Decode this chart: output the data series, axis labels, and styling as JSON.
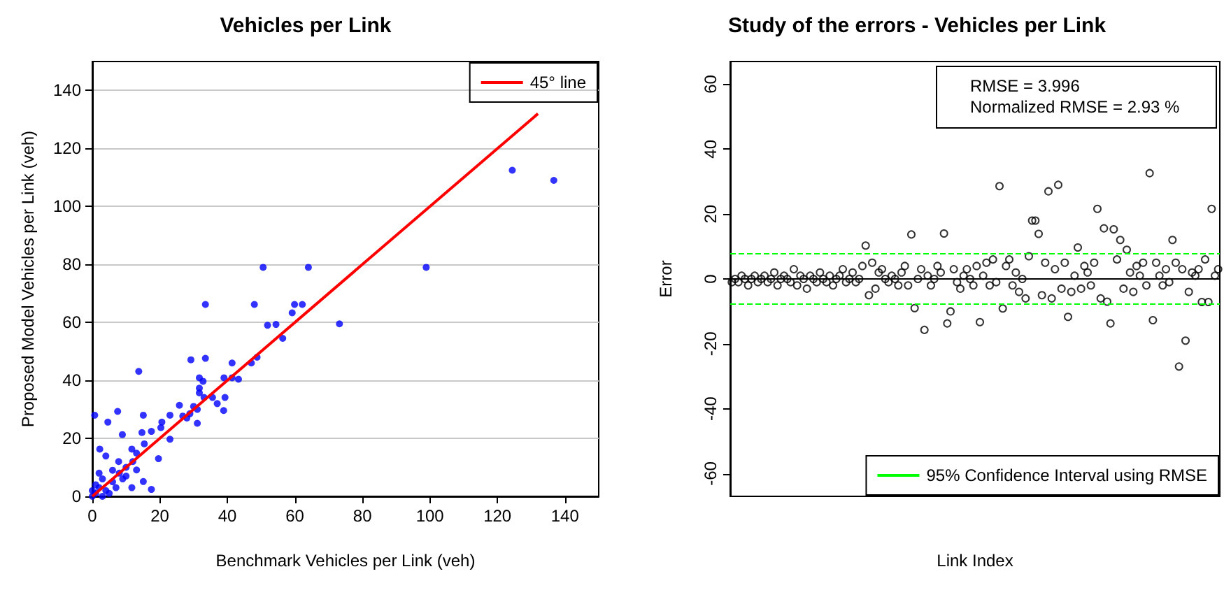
{
  "chart_data": [
    {
      "type": "scatter",
      "title": "Vehicles per Link",
      "xlabel": "Benchmark Vehicles per Link (veh)",
      "ylabel": "Proposed Model Vehicles per Link (veh)",
      "xlim": [
        0,
        150
      ],
      "xticks": [
        0,
        20,
        40,
        60,
        80,
        100,
        120,
        140
      ],
      "ylim": [
        0,
        150
      ],
      "yticks": [
        0,
        20,
        40,
        60,
        80,
        100,
        120,
        140
      ],
      "grid": "y",
      "legend": "top right",
      "series": [
        {
          "marker": "circle",
          "color": "#0000ff",
          "x": [
            124.4,
            136.7,
            98.9,
            50.6,
            64,
            33.5,
            48,
            59.9,
            62.2,
            59.2,
            51.9,
            54.4,
            56.4,
            73.2,
            29.2,
            33.5,
            41.4,
            47.1,
            48.8,
            13.75,
            31.7,
            32.8,
            39,
            41.4,
            43.3,
            31.7,
            31.7,
            33.1,
            35.6,
            37,
            39.3,
            38.9,
            31.1,
            31.1,
            25.8,
            28.9,
            26.8,
            23,
            20.6,
            20.3,
            23,
            19.6,
            17.5,
            14.7,
            15.1,
            7.5,
            0.7,
            4.6,
            8.9,
            2.2,
            4,
            11.7,
            13.1,
            15.4,
            15.1,
            17.5,
            11.7,
            13.1,
            7.8,
            2,
            4,
            6,
            8,
            10,
            5,
            1,
            3,
            0,
            1,
            2,
            7,
            9,
            12,
            3,
            0,
            6,
            10,
            28,
            30
          ],
          "values": [
            112.5,
            109,
            79,
            79,
            79,
            66.2,
            66.2,
            66.2,
            66.2,
            63.3,
            59,
            59.3,
            54.5,
            59.5,
            47.1,
            47.6,
            46,
            46,
            48,
            43.1,
            40.9,
            39.7,
            40.9,
            40.9,
            40.4,
            37.3,
            35.7,
            34.1,
            34.1,
            32,
            34.1,
            29.6,
            25.2,
            30,
            31.4,
            28.5,
            27.7,
            28,
            25.6,
            23.7,
            19.7,
            13,
            22.4,
            22,
            28,
            29.3,
            28,
            25.6,
            21.3,
            16.3,
            13.9,
            16.3,
            14.9,
            18.1,
            5.1,
            2.4,
            3,
            9.1,
            12,
            3,
            2,
            5,
            8,
            10,
            1,
            1,
            6,
            0,
            4,
            8,
            3,
            6,
            12,
            0,
            2,
            9,
            7,
            27,
            31
          ]
        },
        {
          "type": "line",
          "marker": "none",
          "name": "45° line",
          "color": "#ff0000",
          "x": [
            0,
            132
          ],
          "values": [
            0,
            132
          ]
        }
      ]
    },
    {
      "type": "scatter",
      "title": "Study of the errors - Vehicles per Link",
      "xlabel": "Link Index",
      "ylabel": "Error",
      "ylim": [
        -67,
        67
      ],
      "yticks": [
        -60,
        -40,
        -20,
        0,
        20,
        40,
        60
      ],
      "tick_labels": "y",
      "legend": "bottom right",
      "marker": "circle",
      "annotations": [
        "RMSE = 3.996",
        "Normalized RMSE = 2.93 %"
      ],
      "ref_lines": [
        {
          "axis": "y",
          "value": 7.8,
          "label": "95% Confidence Interval using RMSE",
          "color": "#00ff00",
          "line_style": "dashed"
        },
        {
          "axis": "y",
          "value": -7.8,
          "color": "#00ff00",
          "line_style": "dashed"
        }
      ],
      "categories": [
        null,
        null,
        null,
        null,
        null,
        null,
        null,
        null,
        null,
        null,
        null,
        null,
        null,
        null,
        null,
        null,
        null,
        null,
        null,
        null,
        null,
        null,
        null,
        null,
        null,
        null,
        null,
        null,
        null,
        null,
        null,
        null,
        null,
        null,
        null,
        null,
        null,
        null,
        null,
        null,
        null,
        null,
        null,
        null,
        null,
        null,
        null,
        null,
        null,
        null,
        null,
        null,
        null,
        null,
        null,
        null,
        null,
        null,
        null,
        null,
        null,
        null,
        null,
        null,
        null,
        null,
        null,
        null,
        null,
        null,
        null,
        null,
        null,
        null,
        null,
        null,
        null,
        null,
        null,
        null,
        null,
        null,
        null,
        null,
        null,
        null,
        null,
        null,
        null,
        null,
        null,
        null,
        null,
        null,
        null,
        null,
        null,
        null,
        null,
        null,
        null,
        null,
        null,
        null,
        null,
        null,
        null,
        null,
        null,
        null,
        null,
        null,
        null,
        null,
        null,
        null,
        null,
        null,
        null,
        null,
        null,
        null,
        null,
        null,
        null,
        null,
        null,
        null,
        null,
        null,
        null,
        null,
        null,
        null,
        null,
        null,
        null,
        null,
        null,
        null,
        null,
        null,
        null,
        null,
        null,
        null,
        null,
        null,
        null,
        null
      ],
      "series": [
        {
          "color": "#000000",
          "values": [
            -1,
            0,
            -1,
            1,
            0,
            -2,
            0,
            1,
            -1,
            0,
            1,
            -1,
            0,
            2,
            -2,
            0,
            1,
            0,
            -1,
            3,
            -2,
            1,
            0,
            -3,
            1,
            0,
            -1,
            2,
            0,
            -1,
            1,
            -2,
            0,
            1,
            3,
            -1,
            0,
            2,
            -1,
            0,
            4,
            10.3,
            -5,
            5,
            -3,
            2,
            3,
            0,
            -1,
            1,
            0,
            -2,
            2,
            4,
            -2,
            13.7,
            -9,
            0,
            3,
            -15.7,
            1,
            -2,
            0,
            4,
            2,
            14,
            -13.7,
            -10,
            3,
            -1,
            -3,
            1,
            3,
            0,
            -2,
            4,
            -13.3,
            1,
            5,
            -2,
            6,
            -1,
            28.6,
            -9.1,
            4,
            6,
            -2,
            2,
            -4,
            0,
            -6,
            7,
            18,
            18,
            13.9,
            -5,
            5,
            27,
            -6,
            3,
            29,
            -3,
            5,
            -11.7,
            -4,
            1,
            9.7,
            -3,
            4,
            2,
            -2,
            5,
            21.6,
            -6,
            15.6,
            -7,
            -13.7,
            15.3,
            6,
            12,
            -3,
            9,
            2,
            -4,
            4,
            1,
            5,
            -2,
            32.6,
            -12.7,
            5,
            1,
            -2,
            3,
            -1,
            12,
            5,
            -27,
            3,
            -19,
            -4,
            2,
            1,
            3,
            -7.1,
            6,
            -7.1,
            21.6,
            1,
            3
          ]
        }
      ]
    }
  ]
}
